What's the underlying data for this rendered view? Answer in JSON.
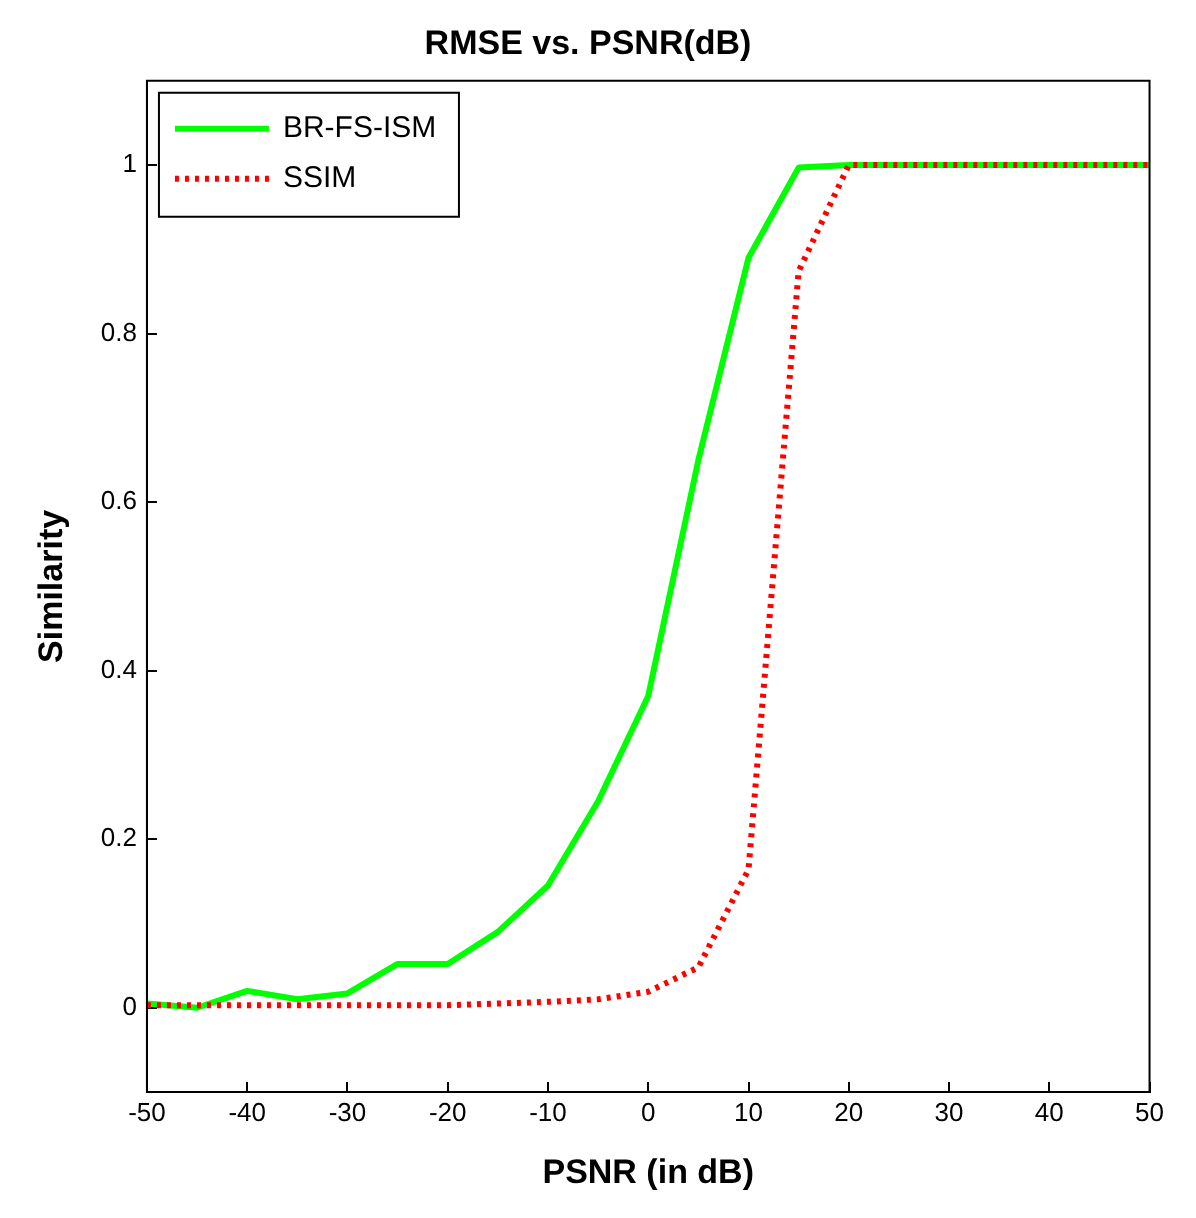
{
  "chart_data": {
    "type": "line",
    "title": "RMSE vs. PSNR(dB)",
    "xlabel": "PSNR (in dB)",
    "ylabel": "Similarity",
    "x": [
      -50,
      -45,
      -40,
      -35,
      -30,
      -25,
      -20,
      -15,
      -10,
      -5,
      0,
      5,
      10,
      15,
      20,
      25,
      30,
      35,
      40,
      45,
      50
    ],
    "series": [
      {
        "name": "BR-FS-ISM",
        "color": "#00ff00",
        "line_style": "solid",
        "values": [
          0.005,
          0,
          0.02,
          0.01,
          0.017,
          0.052,
          0.052,
          0.09,
          0.145,
          0.245,
          0.37,
          0.65,
          0.89,
          0.997,
          1,
          1,
          1,
          1,
          1,
          1,
          1
        ]
      },
      {
        "name": "SSIM",
        "color": "#ff0000",
        "line_style": "dotted",
        "values": [
          0.003,
          0.003,
          0.003,
          0.003,
          0.003,
          0.003,
          0.003,
          0.005,
          0.007,
          0.01,
          0.019,
          0.048,
          0.164,
          0.874,
          1,
          1,
          1,
          1,
          1,
          1,
          1
        ]
      }
    ],
    "xlim": [
      -50,
      50
    ],
    "xticks": [
      -50,
      -40,
      -30,
      -20,
      -10,
      0,
      10,
      20,
      30,
      40,
      50
    ],
    "ylim": [
      -0.1,
      1.1
    ],
    "yticks": [
      0,
      0.2,
      0.4,
      0.6,
      0.8,
      1
    ],
    "grid": false,
    "legend": "top left",
    "marker": "none"
  }
}
